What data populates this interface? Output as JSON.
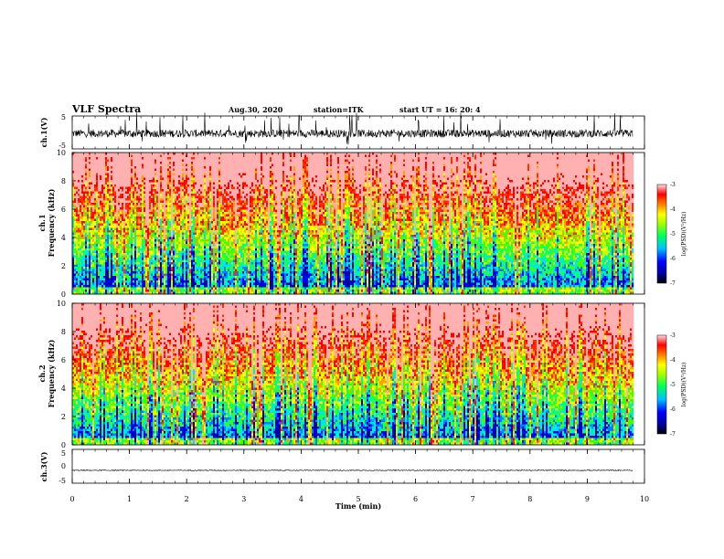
{
  "header": {
    "title": "VLF Spectra",
    "date": "Aug.30, 2020",
    "station": "station=ITK",
    "start": "start UT =  16: 20: 4"
  },
  "chart_data": [
    {
      "type": "line",
      "id": "ch1-waveform",
      "ylabel": "ch.1(V)",
      "ylim": [
        -5,
        5
      ],
      "yticks": [
        "5",
        "-5"
      ],
      "xlim": [
        0,
        10
      ],
      "data_end_min": 9.8,
      "description_values": {
        "baseline": -0.3,
        "typical_amplitude": 1.2,
        "max_spike": 5.5
      }
    },
    {
      "type": "heatmap",
      "id": "ch1-spectrogram",
      "ylabel": "ch.1\nFrequency (kHz)",
      "ylabel_line1": "ch.1",
      "ylabel_line2": "Frequency (kHz)",
      "ylim": [
        0,
        10
      ],
      "yticks": [
        "0",
        "2",
        "4",
        "6",
        "8",
        "10"
      ],
      "xlim": [
        0,
        10
      ],
      "data_end_min": 9.8,
      "colorbar": {
        "label": "log(PSD)(V²/Hz)",
        "range": [
          -7,
          -3
        ],
        "ticks": [
          "-3",
          "-4",
          "-5",
          "-6",
          "-7"
        ]
      }
    },
    {
      "type": "heatmap",
      "id": "ch2-spectrogram",
      "ylabel_line1": "ch.2",
      "ylabel_line2": "Frequency (kHz)",
      "ylim": [
        0,
        10
      ],
      "yticks": [
        "0",
        "2",
        "4",
        "6",
        "8",
        "10"
      ],
      "xlim": [
        0,
        10
      ],
      "data_end_min": 9.8,
      "colorbar": {
        "label": "log(PSD)(V²/Hz)",
        "range": [
          -7,
          -3
        ],
        "ticks": [
          "-3",
          "-4",
          "-5",
          "-6",
          "-7"
        ]
      }
    },
    {
      "type": "line",
      "id": "ch3-waveform",
      "ylabel": "ch.3(V)",
      "ylim": [
        -5,
        5
      ],
      "yticks": [
        "5",
        "0",
        "-5"
      ],
      "xlim": [
        0,
        10
      ],
      "data_end_min": 9.8,
      "description_values": {
        "baseline": -1.2,
        "typical_amplitude": 0.1
      }
    }
  ],
  "xaxis": {
    "label": "Time (min)",
    "ticks": [
      "0",
      "1",
      "2",
      "3",
      "4",
      "5",
      "6",
      "7",
      "8",
      "9",
      "10"
    ]
  },
  "colorbar_label": "log(PSD)(V²/Hz)",
  "colorbar_ticks": [
    "-3",
    "-4",
    "-5",
    "-6",
    "-7"
  ],
  "colors": {
    "colormap": [
      "#0000a0",
      "#0000ff",
      "#0080ff",
      "#00e0ff",
      "#00ff80",
      "#40ff00",
      "#c0ff00",
      "#ffff00",
      "#ffa000",
      "#ff3000",
      "#ff0000",
      "#ffb0b0",
      "#ffffff"
    ],
    "trace": "#000000"
  }
}
